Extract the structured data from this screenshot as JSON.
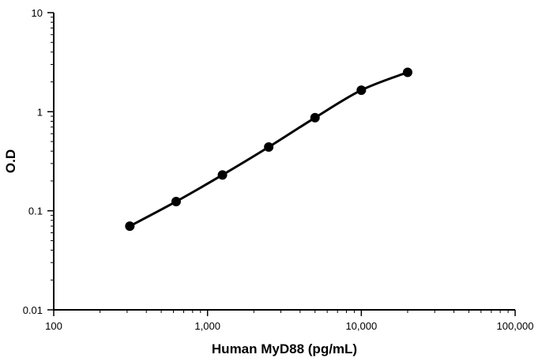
{
  "chart_data": {
    "type": "line",
    "title": "",
    "xlabel": "Human MyD88 (pg/mL)",
    "ylabel": "O.D",
    "x_scale": "log",
    "y_scale": "log",
    "xlim": [
      100,
      100000
    ],
    "ylim": [
      0.01,
      10
    ],
    "x_ticks": [
      {
        "value": 100,
        "label": "100"
      },
      {
        "value": 1000,
        "label": "1,000"
      },
      {
        "value": 10000,
        "label": "10,000"
      },
      {
        "value": 100000,
        "label": "100,000"
      }
    ],
    "y_ticks": [
      {
        "value": 0.01,
        "label": "0.01"
      },
      {
        "value": 0.1,
        "label": "0.1"
      },
      {
        "value": 1,
        "label": "1"
      },
      {
        "value": 10,
        "label": "10"
      }
    ],
    "grid": false,
    "legend": "none",
    "line_color": "#000000",
    "marker": "filled-circle",
    "series": [
      {
        "x": [
          312.5,
          625,
          1250,
          2500,
          5000,
          10000,
          20000
        ],
        "y": [
          0.07,
          0.124,
          0.23,
          0.44,
          0.87,
          1.65,
          2.5
        ]
      }
    ]
  }
}
